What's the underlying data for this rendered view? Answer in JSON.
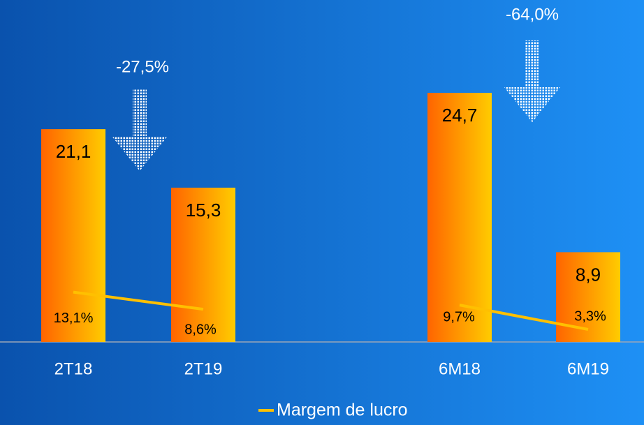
{
  "chart_data": {
    "type": "bar",
    "categories": [
      "2T18",
      "2T19",
      "6M18",
      "6M19"
    ],
    "series": [
      {
        "name": null,
        "type": "bar",
        "values": [
          21.1,
          15.3,
          24.7,
          8.9
        ],
        "value_labels": [
          "21,1",
          "15,3",
          "24,7",
          "8,9"
        ],
        "color": "#ff8c00"
      },
      {
        "name": "Margem de lucro",
        "type": "line",
        "axis": "y2",
        "values": [
          13.1,
          8.6,
          9.7,
          3.3
        ],
        "value_labels": [
          "13,1%",
          "8,6%",
          "9,7%",
          "3,3%"
        ],
        "color": "#ffc000"
      }
    ],
    "annotations": [
      "-27,5%",
      "-64,0%"
    ],
    "legend": "bottom"
  }
}
